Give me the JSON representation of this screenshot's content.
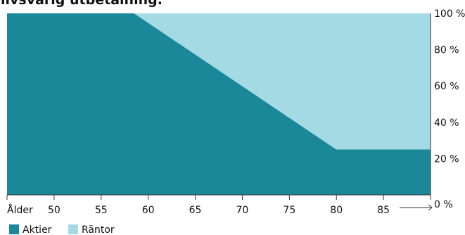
{
  "chart_data": {
    "type": "area",
    "title": "livsvarig utbetalning.",
    "xlabel": "Ålder",
    "ylabel": "",
    "x_range": [
      45,
      90
    ],
    "y_range": [
      0,
      100
    ],
    "x_ticks": [
      50,
      55,
      60,
      65,
      70,
      75,
      80,
      85
    ],
    "y_ticks": [
      100,
      80,
      60,
      40,
      20,
      0
    ],
    "y_tick_suffix": " %",
    "stacked": true,
    "x": [
      45,
      58.5,
      80,
      90
    ],
    "series": [
      {
        "name": "Aktier",
        "color": "#1a8898",
        "values": [
          100,
          100,
          25,
          25
        ]
      },
      {
        "name": "Räntor",
        "color": "#a3dae4",
        "values": [
          0,
          0,
          75,
          75
        ]
      }
    ],
    "legend_position": "bottom-left",
    "grid": false
  }
}
